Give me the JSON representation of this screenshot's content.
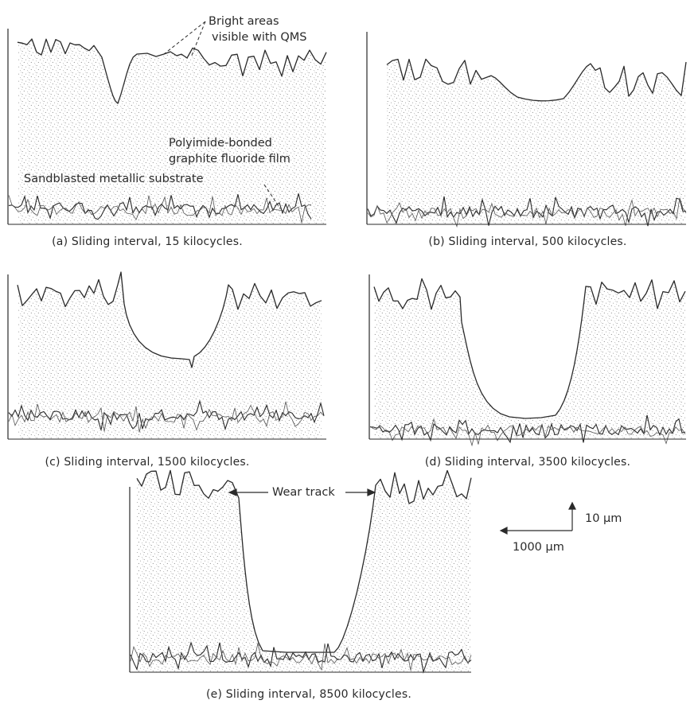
{
  "panels": [
    {
      "id": "a",
      "caption": "(a) Sliding interval, 15 kilocycles."
    },
    {
      "id": "b",
      "caption": "(b) Sliding interval, 500 kilocycles."
    },
    {
      "id": "c",
      "caption": "(c) Sliding interval, 1500 kilocycles."
    },
    {
      "id": "d",
      "caption": "(d) Sliding interval, 3500 kilocycles."
    },
    {
      "id": "e",
      "caption": "(e) Sliding interval, 8500 kilocycles."
    }
  ],
  "annotations": {
    "bright_areas_line1": "Bright areas",
    "bright_areas_line2": "visible with QMS",
    "film_line1": "Polyimide-bonded",
    "film_line2": "graphite fluoride film",
    "substrate": "Sandblasted metallic substrate",
    "wear_track": "Wear track"
  },
  "scale_bar": {
    "vertical_label": "10 µm",
    "horizontal_label": "1000 µm"
  },
  "colors": {
    "ink": "#2a2a2a",
    "stipple": "#7a7a7a",
    "background": "#ffffff"
  }
}
